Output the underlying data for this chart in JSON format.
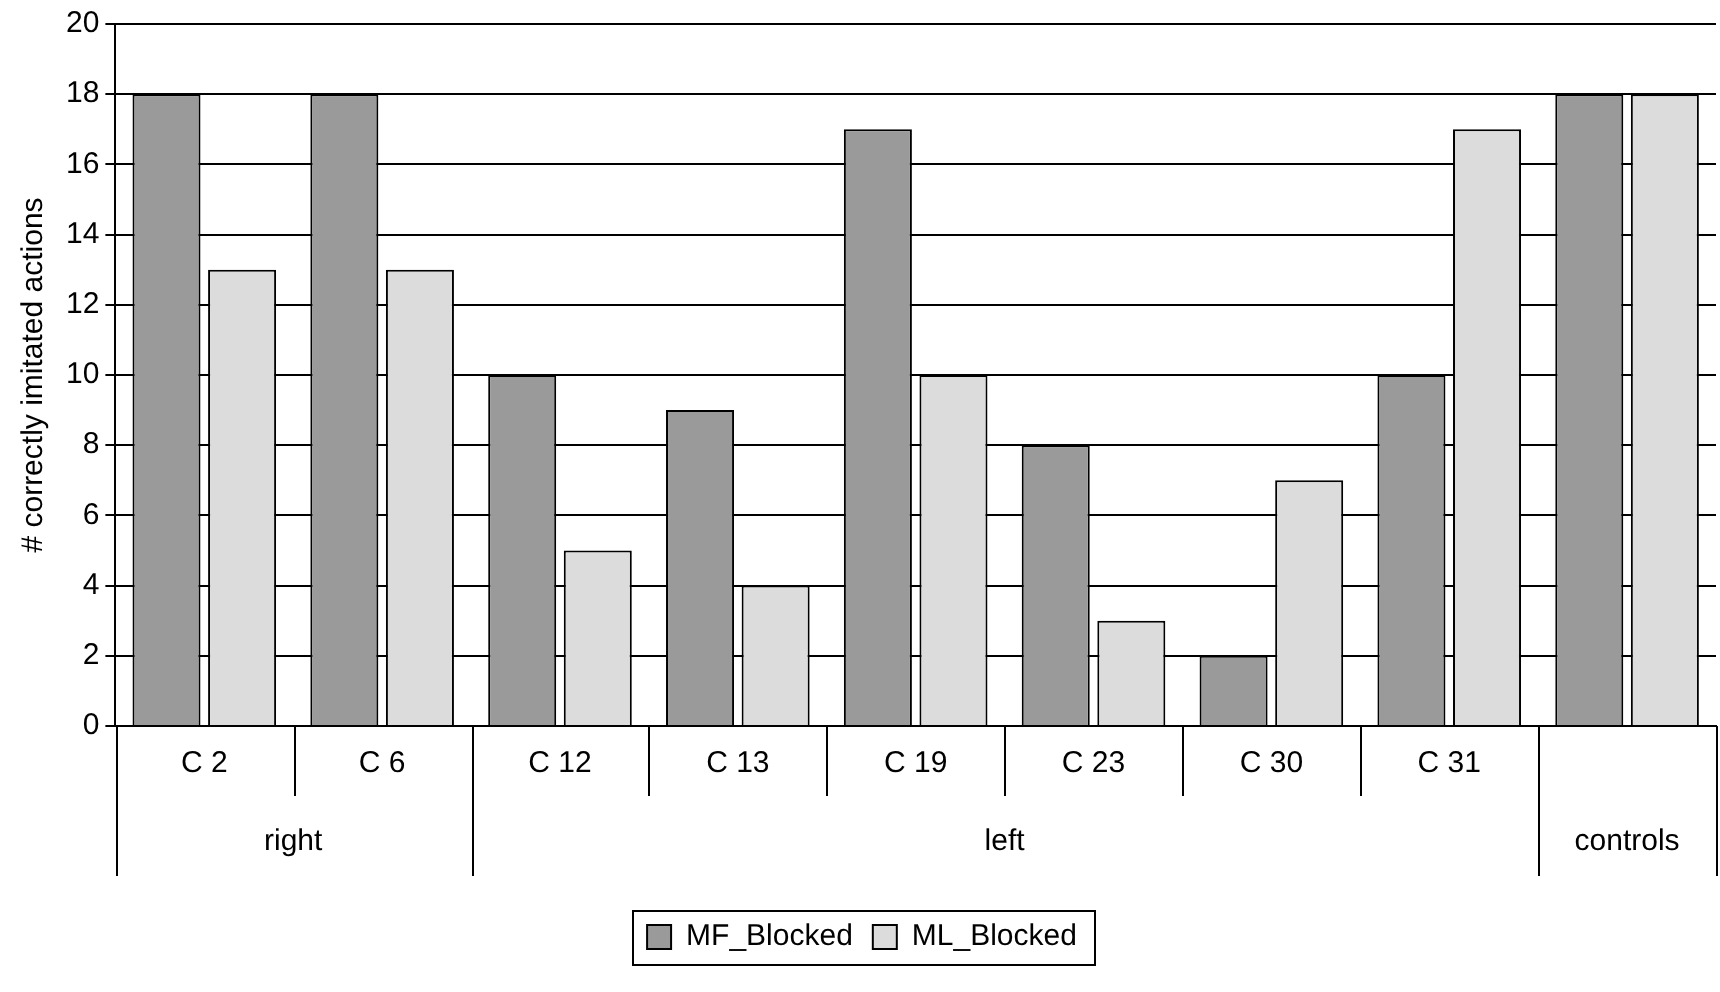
{
  "chart_data": {
    "type": "bar",
    "ylabel": "# correctly imitated actions",
    "categories": [
      "C 2",
      "C 6",
      "C 12",
      "C 13",
      "C 19",
      "C 23",
      "C 30",
      "C 31",
      null
    ],
    "series": [
      {
        "name": "MF_Blocked",
        "color": "#9a9a9a",
        "values": [
          18,
          18,
          10,
          9,
          17,
          8,
          2,
          10,
          18
        ]
      },
      {
        "name": "ML_Blocked",
        "color": "#dcdcdc",
        "values": [
          13,
          13,
          5,
          4,
          10,
          3,
          7,
          17,
          18
        ]
      }
    ],
    "annotations": [
      "right",
      "left",
      "controls"
    ],
    "ylim": [
      0,
      20
    ],
    "yticks": [
      0,
      2,
      4,
      6,
      8,
      10,
      12,
      14,
      16,
      18,
      20
    ],
    "grid": "y",
    "legend": "bottom"
  }
}
